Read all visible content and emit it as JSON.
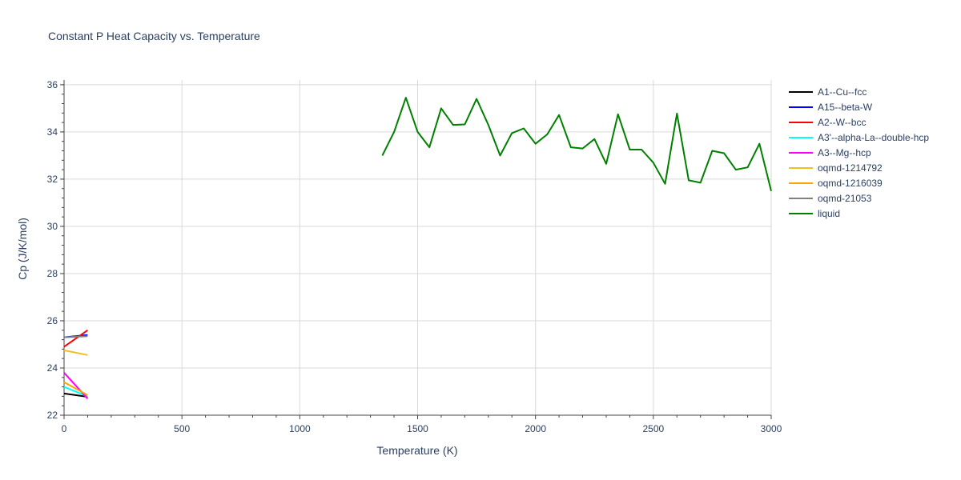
{
  "chart_data": {
    "type": "line",
    "title": "Constant P Heat Capacity vs. Temperature",
    "xlabel": "Temperature (K)",
    "ylabel": "Cp (J/K/mol)",
    "xlim": [
      0,
      3000
    ],
    "ylim": [
      22,
      36.2
    ],
    "x_ticks": [
      0,
      500,
      1000,
      1500,
      2000,
      2500,
      3000
    ],
    "x_tick_labels": [
      "0",
      "500",
      "1000",
      "1500",
      "2000",
      "2500",
      "3000"
    ],
    "y_ticks": [
      22,
      24,
      26,
      28,
      30,
      32,
      34,
      36
    ],
    "y_tick_labels": [
      "22",
      "24",
      "26",
      "28",
      "30",
      "32",
      "34",
      "36"
    ],
    "grid": true,
    "legend_position": "right",
    "series": [
      {
        "name": "A1--Cu--fcc",
        "color": "#000000",
        "x": [
          0,
          100
        ],
        "y": [
          22.92,
          22.78
        ]
      },
      {
        "name": "A15--beta-W",
        "color": "#0000ff",
        "x": [
          0,
          100
        ],
        "y": [
          25.3,
          25.4
        ]
      },
      {
        "name": "A2--W--bcc",
        "color": "#ff0000",
        "x": [
          0,
          100
        ],
        "y": [
          24.9,
          25.6
        ]
      },
      {
        "name": "A3'--alpha-La--double-hcp",
        "color": "#00ffff",
        "x": [
          0,
          100
        ],
        "y": [
          23.2,
          22.8
        ]
      },
      {
        "name": "A3--Mg--hcp",
        "color": "#ff00ff",
        "x": [
          0,
          100
        ],
        "y": [
          23.8,
          22.7
        ]
      },
      {
        "name": "oqmd-1214792",
        "color": "#f0c020",
        "x": [
          0,
          100
        ],
        "y": [
          24.75,
          24.55
        ]
      },
      {
        "name": "oqmd-1216039",
        "color": "#ffa500",
        "x": [
          0,
          100
        ],
        "y": [
          23.4,
          22.85
        ]
      },
      {
        "name": "oqmd-21053",
        "color": "#808080",
        "x": [
          0,
          100
        ],
        "y": [
          25.3,
          25.35
        ]
      },
      {
        "name": "liquid",
        "color": "#008000",
        "x": [
          1350,
          1400,
          1450,
          1500,
          1550,
          1600,
          1650,
          1700,
          1750,
          1800,
          1850,
          1900,
          1950,
          2000,
          2050,
          2100,
          2150,
          2200,
          2250,
          2300,
          2350,
          2400,
          2450,
          2500,
          2550,
          2600,
          2650,
          2700,
          2750,
          2800,
          2850,
          2900,
          2950,
          3000
        ],
        "y": [
          33.0,
          34.0,
          35.45,
          34.0,
          33.35,
          35.0,
          34.3,
          34.32,
          35.4,
          34.3,
          33.0,
          33.95,
          34.15,
          33.5,
          33.9,
          34.72,
          33.35,
          33.3,
          33.7,
          32.65,
          34.75,
          33.25,
          33.25,
          32.7,
          31.8,
          34.78,
          31.95,
          31.85,
          33.2,
          33.1,
          32.4,
          32.5,
          33.5,
          31.5
        ]
      }
    ]
  }
}
